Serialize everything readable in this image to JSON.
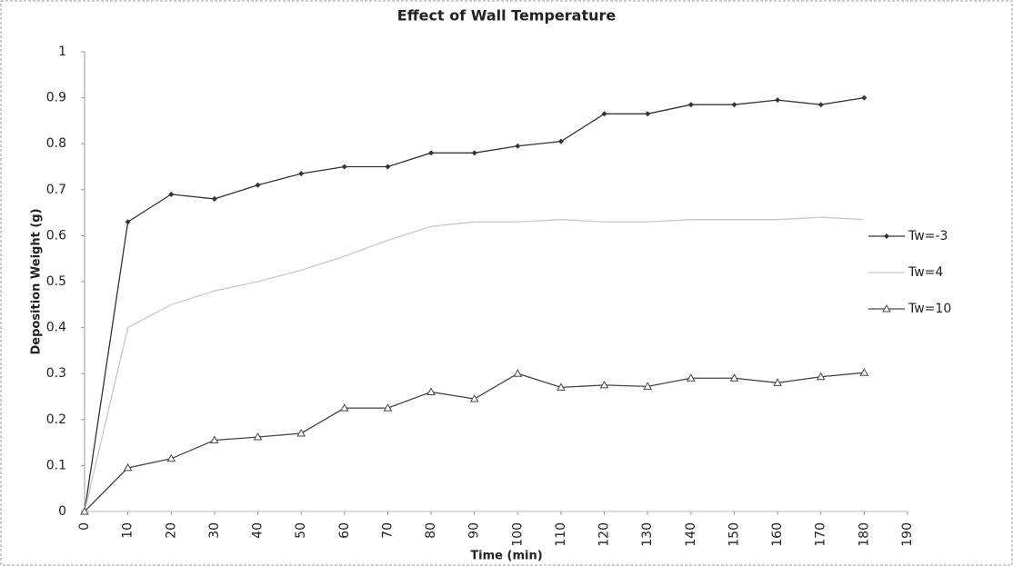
{
  "chart_data": {
    "type": "line",
    "title": "Effect of Wall Temperature",
    "xlabel": "Time (min)",
    "ylabel": "Deposition Weight (g)",
    "x": [
      0,
      10,
      20,
      30,
      40,
      50,
      60,
      70,
      80,
      90,
      100,
      110,
      120,
      130,
      140,
      150,
      160,
      170,
      180
    ],
    "series": [
      {
        "name": "Tw=-3",
        "color": "#333333",
        "marker": "diamond",
        "values": [
          0,
          0.63,
          0.69,
          0.68,
          0.71,
          0.735,
          0.75,
          0.75,
          0.78,
          0.78,
          0.795,
          0.805,
          0.865,
          0.865,
          0.885,
          0.885,
          0.895,
          0.885,
          0.9
        ]
      },
      {
        "name": "Tw=4",
        "color": "#c8c8c8",
        "marker": "none",
        "values": [
          0,
          0.4,
          0.45,
          0.48,
          0.5,
          0.525,
          0.555,
          0.59,
          0.62,
          0.63,
          0.63,
          0.635,
          0.63,
          0.63,
          0.635,
          0.635,
          0.635,
          0.64,
          0.635
        ]
      },
      {
        "name": "Tw=10",
        "color": "#444444",
        "marker": "triangle",
        "values": [
          0,
          0.095,
          0.115,
          0.155,
          0.162,
          0.17,
          0.225,
          0.225,
          0.26,
          0.245,
          0.3,
          0.27,
          0.275,
          0.272,
          0.29,
          0.29,
          0.28,
          0.293,
          0.302
        ]
      }
    ],
    "xlim": [
      0,
      190
    ],
    "xticks": [
      0,
      10,
      20,
      30,
      40,
      50,
      60,
      70,
      80,
      90,
      100,
      110,
      120,
      130,
      140,
      150,
      160,
      170,
      180,
      190
    ],
    "ylim": [
      0,
      1
    ],
    "yticks": [
      0,
      0.1,
      0.2,
      0.3,
      0.4,
      0.5,
      0.6,
      0.7,
      0.8,
      0.9,
      1
    ],
    "grid": false,
    "legend": "right"
  }
}
